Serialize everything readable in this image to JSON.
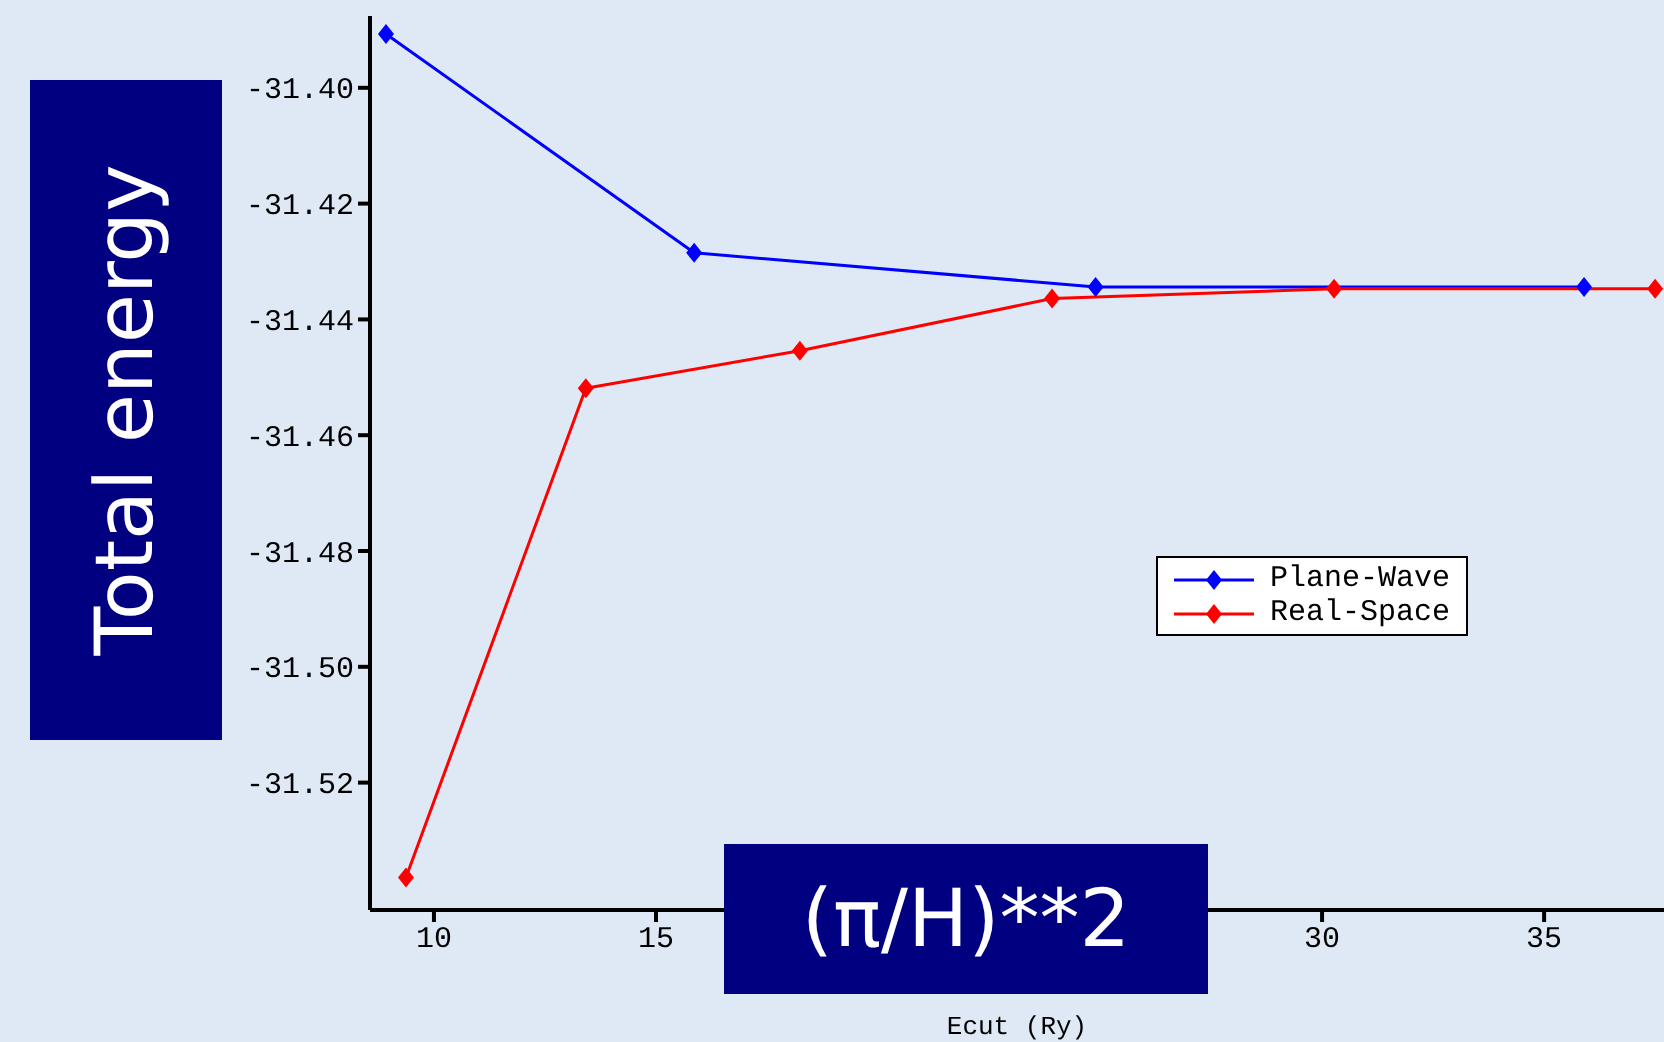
{
  "chart_data": {
    "type": "line",
    "ylabel": "Total energy",
    "xlabel": "Ecut (Ry)",
    "annotations": [
      "(π/H)**2"
    ],
    "xlim": [
      8.56,
      37.7
    ],
    "xticks": [
      10,
      15,
      30,
      35
    ],
    "ylim": [
      -31.542,
      -31.3876
    ],
    "yticks": [
      {
        "value": -31.4,
        "label": "-31.40"
      },
      {
        "value": -31.42,
        "label": "-31.42"
      },
      {
        "value": -31.44,
        "label": "-31.44"
      },
      {
        "value": -31.46,
        "label": "-31.46"
      },
      {
        "value": -31.48,
        "label": "-31.48"
      },
      {
        "value": -31.5,
        "label": "-31.50"
      },
      {
        "value": -31.52,
        "label": "-31.52"
      }
    ],
    "grid": false,
    "legend": "right",
    "marker": "diamond",
    "line_style": "solid",
    "series": [
      {
        "name": "Plane-Wave",
        "color": "#0000ff",
        "x": [
          8.92,
          15.86,
          24.9,
          35.9
        ],
        "values": [
          -31.3907,
          -31.4285,
          -31.4344,
          -31.4344
        ]
      },
      {
        "name": "Real-Space",
        "color": "#ff0000",
        "x": [
          9.37,
          13.42,
          18.24,
          23.92,
          30.27,
          37.5
        ],
        "values": [
          -31.5364,
          -31.4519,
          -31.4454,
          -31.4364,
          -31.4347,
          -31.4347
        ]
      }
    ]
  }
}
